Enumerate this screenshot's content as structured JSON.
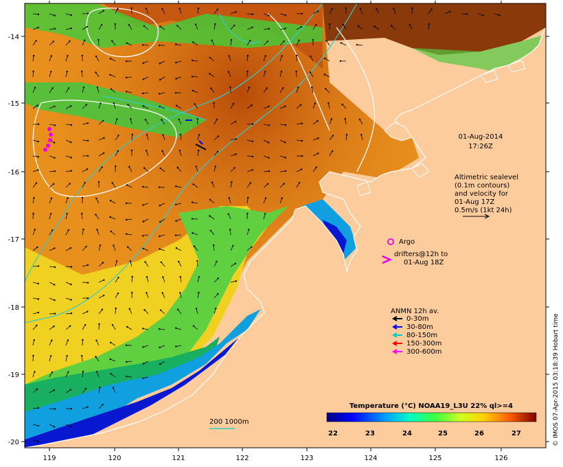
{
  "map": {
    "lon_ticks": [
      "119",
      "120",
      "121",
      "122",
      "123",
      "124",
      "125",
      "126"
    ],
    "lat_ticks": [
      "-14",
      "-15",
      "-16",
      "-17",
      "-18",
      "-19",
      "-20"
    ],
    "date_line1": "01-Aug-2014",
    "date_line2": "17:26Z",
    "altimetry": [
      "Altimetric sealevel",
      "(0.1m contours)",
      "and velocity for",
      "01-Aug 17Z",
      "0.5m/s (1kt 24h)"
    ],
    "argo_label": "Argo",
    "drifters_line1": "drifters@12h to",
    "drifters_line2": "01-Aug 18Z",
    "anmn_title": "ANMN 12h av.",
    "anmn_items": [
      {
        "label": "0-30m",
        "color": "#000000"
      },
      {
        "label": "30-80m",
        "color": "#0000ff"
      },
      {
        "label": "80-150m",
        "color": "#00cccc"
      },
      {
        "label": "150-300m",
        "color": "#ff0000"
      },
      {
        "label": "300-600m",
        "color": "#ff00ff"
      }
    ],
    "contour_label": "200  1000m",
    "colorbar_title": "Temperature (°C) NOAA19_L3U 22% ql>=4",
    "colorbar_ticks": [
      "22",
      "23",
      "24",
      "25",
      "26",
      "27"
    ],
    "credit": "© IMOS 07-Apr-2015 03:18:39 Hobart time",
    "colors": {
      "land": "#fdcc9c",
      "argo": "#ee00ee",
      "drifter": "#ee00ee",
      "contour_200": "#33cccc",
      "sealevel_contour": "#ffffff"
    }
  }
}
